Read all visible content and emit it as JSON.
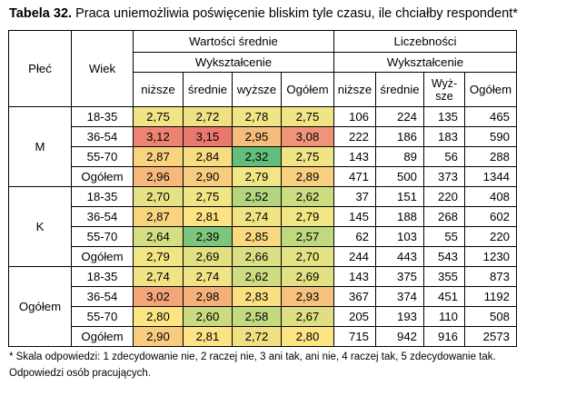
{
  "title": {
    "label": "Tabela 32.",
    "text": "Praca uniemożliwia poświęcenie bliskim tyle czasu, ile chciałby respondent*"
  },
  "headers": {
    "plec": "Płeć",
    "wiek": "Wiek",
    "mean_group": "Wartości średnie",
    "count_group": "Liczebności",
    "education": "Wykształcenie",
    "mean_cols": [
      "niższe",
      "średnie",
      "wyższe",
      "Ogółem"
    ],
    "count_cols": [
      "niższe",
      "średnie",
      "Wyż-sze",
      "Ogółem"
    ]
  },
  "groups": [
    {
      "name": "M",
      "rows": [
        {
          "age": "18-35",
          "means": [
            "2,75",
            "2,72",
            "2,78",
            "2,75"
          ],
          "colors": [
            "#f0e584",
            "#efe084",
            "#f0e584",
            "#f0e584"
          ],
          "counts": [
            "106",
            "224",
            "135",
            "465"
          ]
        },
        {
          "age": "36-54",
          "means": [
            "3,12",
            "3,15",
            "2,95",
            "3,08"
          ],
          "colors": [
            "#ed8373",
            "#ea7870",
            "#f6bc7c",
            "#f19378"
          ],
          "counts": [
            "222",
            "186",
            "183",
            "590"
          ]
        },
        {
          "age": "55-70",
          "means": [
            "2,87",
            "2,84",
            "2,32",
            "2,75"
          ],
          "colors": [
            "#f9d47f",
            "#f8dc81",
            "#63be7b",
            "#f0e584"
          ],
          "counts": [
            "143",
            "89",
            "56",
            "288"
          ]
        },
        {
          "age": "Ogółem",
          "means": [
            "2,96",
            "2,90",
            "2,79",
            "2,89"
          ],
          "colors": [
            "#f6b87b",
            "#f8cc7e",
            "#f1e584",
            "#f8d07f"
          ],
          "counts": [
            "471",
            "500",
            "373",
            "1344"
          ]
        }
      ]
    },
    {
      "name": "K",
      "rows": [
        {
          "age": "18-35",
          "means": [
            "2,70",
            "2,75",
            "2,52",
            "2,62"
          ],
          "colors": [
            "#e5e283",
            "#f0e584",
            "#b4d47f",
            "#cddb81"
          ],
          "counts": [
            "37",
            "151",
            "220",
            "408"
          ]
        },
        {
          "age": "36-54",
          "means": [
            "2,87",
            "2,81",
            "2,74",
            "2,79"
          ],
          "colors": [
            "#f9d47f",
            "#fce383",
            "#efe384",
            "#f1e584"
          ],
          "counts": [
            "145",
            "188",
            "268",
            "602"
          ]
        },
        {
          "age": "55-70",
          "means": [
            "2,64",
            "2,39",
            "2,85",
            "2,57"
          ],
          "colors": [
            "#d4dd81",
            "#7cc57c",
            "#f9d980",
            "#c0d880"
          ],
          "counts": [
            "62",
            "103",
            "55",
            "220"
          ]
        },
        {
          "age": "Ogółem",
          "means": [
            "2,79",
            "2,69",
            "2,66",
            "2,70"
          ],
          "colors": [
            "#f1e584",
            "#e1e083",
            "#dadf82",
            "#e5e283"
          ],
          "counts": [
            "244",
            "443",
            "543",
            "1230"
          ]
        }
      ]
    },
    {
      "name": "Ogółem",
      "rows": [
        {
          "age": "18-35",
          "means": [
            "2,74",
            "2,74",
            "2,62",
            "2,69"
          ],
          "colors": [
            "#efe384",
            "#efe384",
            "#cddb81",
            "#e1e083"
          ],
          "counts": [
            "143",
            "375",
            "355",
            "873"
          ]
        },
        {
          "age": "36-54",
          "means": [
            "3,02",
            "2,98",
            "2,83",
            "2,93"
          ],
          "colors": [
            "#f4a579",
            "#f5b07a",
            "#fbe082",
            "#f7c27d"
          ],
          "counts": [
            "367",
            "374",
            "451",
            "1192"
          ]
        },
        {
          "age": "55-70",
          "means": [
            "2,80",
            "2,60",
            "2,58",
            "2,67"
          ],
          "colors": [
            "#fde584",
            "#c9da81",
            "#c3d980",
            "#dddf82"
          ],
          "counts": [
            "205",
            "193",
            "110",
            "508"
          ]
        },
        {
          "age": "Ogółem",
          "means": [
            "2,90",
            "2,81",
            "2,72",
            "2,80"
          ],
          "colors": [
            "#f8cc7e",
            "#fce383",
            "#efe084",
            "#fde584"
          ],
          "counts": [
            "715",
            "942",
            "916",
            "2573"
          ]
        }
      ]
    }
  ],
  "footnote": {
    "line1": "* Skala odpowiedzi: 1 zdecydowanie nie, 2 raczej nie, 3 ani tak, ani nie, 4 raczej tak, 5 zdecydowanie tak.",
    "line2": "Odpowiedzi osób pracujących."
  }
}
